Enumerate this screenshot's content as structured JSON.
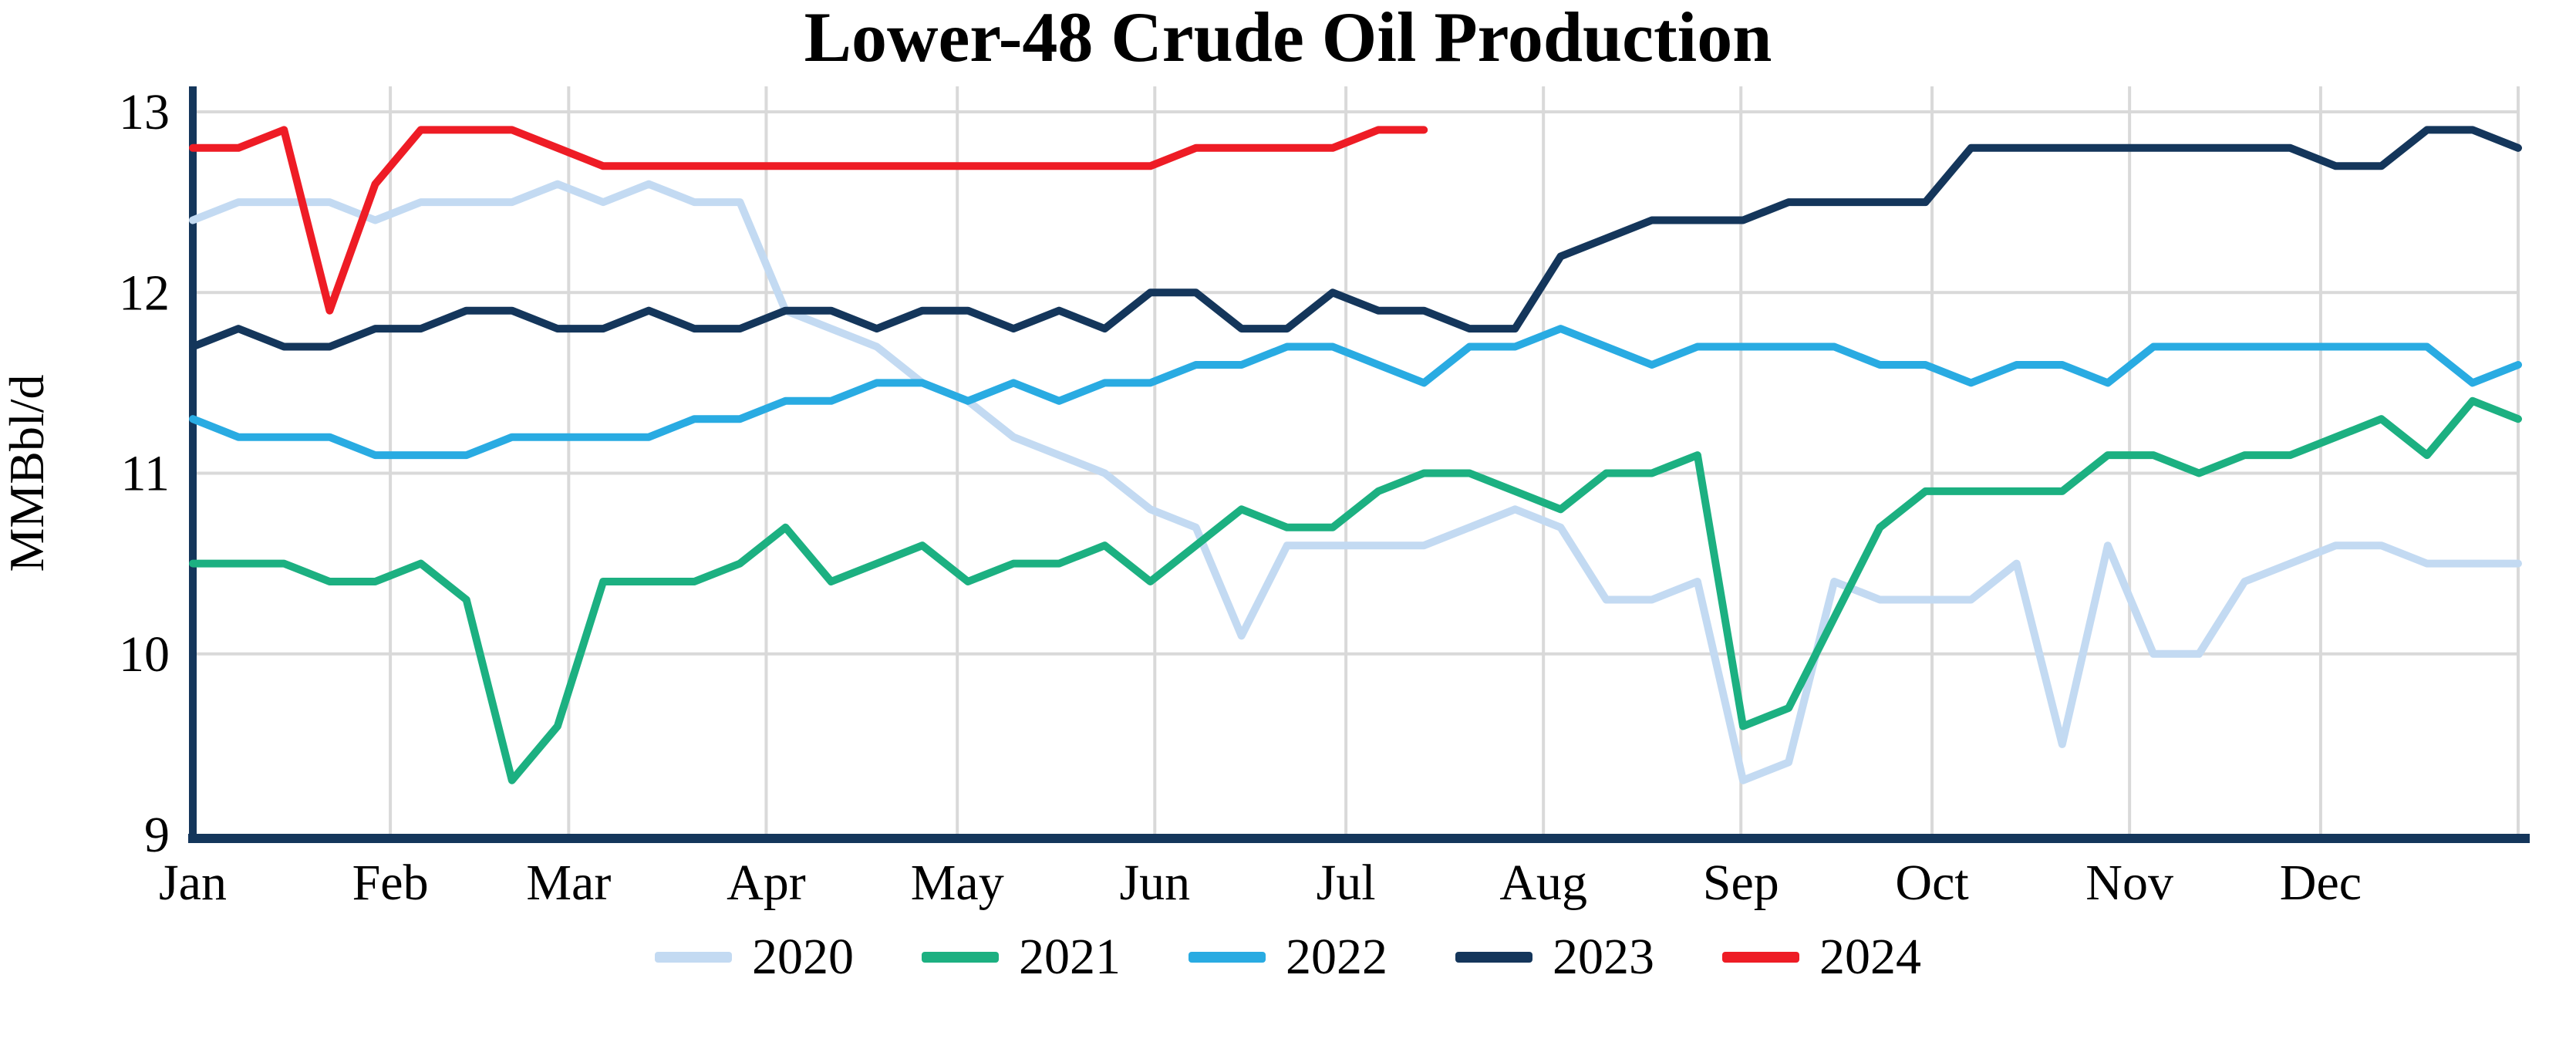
{
  "chart_data": {
    "type": "line",
    "title": "Lower-48 Crude Oil Production",
    "ylabel": "MMBbl/d",
    "ylim": [
      9,
      13
    ],
    "y_ticks": [
      13,
      12,
      11,
      10,
      9
    ],
    "x_tick_labels": [
      "Jan",
      "Feb",
      "Mar",
      "Apr",
      "May",
      "Jun",
      "Jul",
      "Aug",
      "Sep",
      "Oct",
      "Nov",
      "Dec"
    ],
    "x_units": "weekly data, Jan through Dec",
    "grid": true,
    "legend_position": "bottom",
    "series": [
      {
        "name": "2020",
        "color": "#c3daf2",
        "values": [
          12.4,
          12.5,
          12.5,
          12.5,
          12.4,
          12.5,
          12.5,
          12.5,
          12.6,
          12.5,
          12.6,
          12.5,
          12.5,
          11.9,
          11.8,
          11.7,
          11.5,
          11.4,
          11.2,
          11.1,
          11.0,
          10.8,
          10.7,
          10.1,
          10.6,
          10.6,
          10.6,
          10.6,
          10.7,
          10.8,
          10.7,
          10.3,
          10.3,
          10.4,
          9.3,
          9.4,
          10.4,
          10.3,
          10.3,
          10.3,
          10.5,
          9.5,
          10.6,
          10.0,
          10.0,
          10.4,
          10.5,
          10.6,
          10.6,
          10.5,
          10.5,
          10.5
        ]
      },
      {
        "name": "2021",
        "color": "#1cb081",
        "values": [
          10.5,
          10.5,
          10.5,
          10.4,
          10.4,
          10.5,
          10.3,
          9.3,
          9.6,
          10.4,
          10.4,
          10.4,
          10.5,
          10.7,
          10.4,
          10.5,
          10.6,
          10.4,
          10.5,
          10.5,
          10.6,
          10.4,
          10.6,
          10.8,
          10.7,
          10.7,
          10.9,
          11.0,
          11.0,
          10.9,
          10.8,
          11.0,
          11.0,
          11.1,
          9.6,
          9.7,
          10.2,
          10.7,
          10.9,
          10.9,
          10.9,
          10.9,
          11.1,
          11.1,
          11.0,
          11.1,
          11.1,
          11.2,
          11.3,
          11.1,
          11.4,
          11.3
        ]
      },
      {
        "name": "2022",
        "color": "#29abe2",
        "values": [
          11.3,
          11.2,
          11.2,
          11.2,
          11.1,
          11.1,
          11.1,
          11.2,
          11.2,
          11.2,
          11.2,
          11.3,
          11.3,
          11.4,
          11.4,
          11.5,
          11.5,
          11.4,
          11.5,
          11.4,
          11.5,
          11.5,
          11.6,
          11.6,
          11.7,
          11.7,
          11.6,
          11.5,
          11.7,
          11.7,
          11.8,
          11.7,
          11.6,
          11.7,
          11.7,
          11.7,
          11.7,
          11.6,
          11.6,
          11.5,
          11.6,
          11.6,
          11.5,
          11.7,
          11.7,
          11.7,
          11.7,
          11.7,
          11.7,
          11.7,
          11.5,
          11.6
        ]
      },
      {
        "name": "2023",
        "color": "#14365b",
        "values": [
          11.7,
          11.8,
          11.7,
          11.7,
          11.8,
          11.8,
          11.9,
          11.9,
          11.8,
          11.8,
          11.9,
          11.8,
          11.8,
          11.9,
          11.9,
          11.8,
          11.9,
          11.9,
          11.8,
          11.9,
          11.8,
          12.0,
          12.0,
          11.8,
          11.8,
          12.0,
          11.9,
          11.9,
          11.8,
          11.8,
          12.2,
          12.3,
          12.4,
          12.4,
          12.4,
          12.5,
          12.5,
          12.5,
          12.5,
          12.8,
          12.8,
          12.8,
          12.8,
          12.8,
          12.8,
          12.8,
          12.8,
          12.7,
          12.7,
          12.9,
          12.9,
          12.8
        ]
      },
      {
        "name": "2024",
        "color": "#ee1c25",
        "values": [
          12.8,
          12.8,
          12.9,
          11.9,
          12.6,
          12.9,
          12.9,
          12.9,
          12.8,
          12.7,
          12.7,
          12.7,
          12.7,
          12.7,
          12.7,
          12.7,
          12.7,
          12.7,
          12.7,
          12.7,
          12.7,
          12.7,
          12.8,
          12.8,
          12.8,
          12.8,
          12.9,
          12.9
        ]
      }
    ]
  },
  "axis_color": "#14365b",
  "grid_color": "#d9d9d9"
}
